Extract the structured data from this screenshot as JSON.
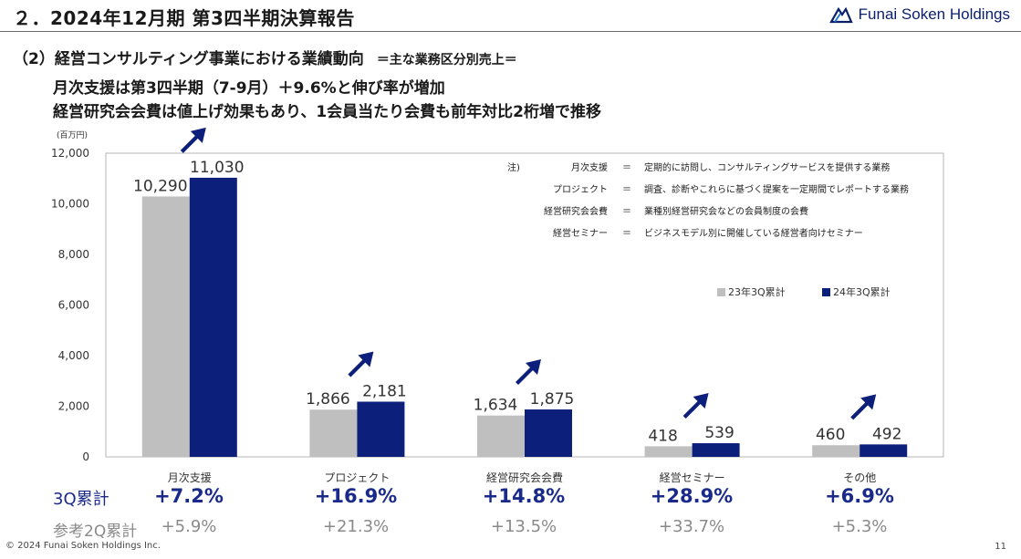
{
  "header": {
    "title": "２．2024年12月期 第3四半期決算報告",
    "logo_text": "Funai Soken Holdings"
  },
  "section": {
    "heading": "（2）経営コンサルティング事業における業績動向",
    "sub": "＝主な業務区分別売上＝"
  },
  "lead": {
    "line1": "月次支援は第3四半期（7-9月）＋9.6%と伸び率が増加",
    "line2": "経営研究会会費は値上げ効果もあり、1会員当たり会費も前年対比2桁増で推移"
  },
  "notes": {
    "head": "注)",
    "eq": "＝",
    "items": [
      {
        "term": "月次支援",
        "desc": "定期的に訪問し、コンサルティングサービスを提供する業務"
      },
      {
        "term": "プロジェクト",
        "desc": "調査、診断やこれらに基づく提案を一定期間でレポートする業務"
      },
      {
        "term": "経営研究会会費",
        "desc": "業種別経営研究会などの会員制度の会費"
      },
      {
        "term": "経営セミナー",
        "desc": "ビジネスモデル別に開催している経営者向けセミナー"
      }
    ]
  },
  "chart_data": {
    "type": "bar",
    "unit_label": "(百万円)",
    "categories": [
      "月次支援",
      "プロジェクト",
      "経営研究会会費",
      "経営セミナー",
      "その他"
    ],
    "series": [
      {
        "name": "23年3Q累計",
        "color": "#bfbfbf",
        "values": [
          10290,
          1866,
          1634,
          418,
          460
        ]
      },
      {
        "name": "24年3Q累計",
        "color": "#0c1f7a",
        "values": [
          11030,
          2181,
          1875,
          539,
          492
        ]
      }
    ],
    "value_labels": [
      [
        "10,290",
        "1,866",
        "1,634",
        "418",
        "460"
      ],
      [
        "11,030",
        "2,181",
        "1,875",
        "539",
        "492"
      ]
    ],
    "ylim": [
      0,
      12000
    ],
    "yticks": [
      0,
      2000,
      4000,
      6000,
      8000,
      10000,
      12000
    ],
    "ytick_labels": [
      "0",
      "2,000",
      "4,000",
      "6,000",
      "8,000",
      "10,000",
      "12,000"
    ],
    "grid": false,
    "legend_position": "right",
    "trend_arrow_color": "#0c1f7a"
  },
  "growth": {
    "row_3q_label": "3Q累計",
    "row_2q_label": "参考2Q累計",
    "q3": [
      "+7.2%",
      "+16.9%",
      "+14.8%",
      "+28.9%",
      "+6.9%"
    ],
    "q2": [
      "+5.9%",
      "+21.3%",
      "+13.5%",
      "+33.7%",
      "+5.3%"
    ]
  },
  "footer": {
    "copyright": "© 2024 Funai Soken Holdings Inc.",
    "page": "11"
  }
}
